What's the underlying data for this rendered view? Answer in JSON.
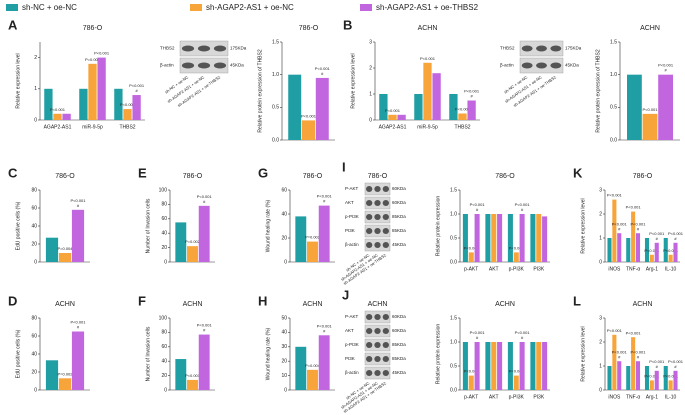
{
  "chart_data": [
    {
      "type": "bar",
      "panel": "A",
      "title": "786-O",
      "ylabel": "Relative expression level",
      "categories": [
        "AGAP2-AS1",
        "miR-9-5p",
        "THBS2"
      ],
      "ylim": [
        0,
        2.5
      ],
      "yticks": [
        0,
        1,
        2
      ],
      "series": [
        {
          "name": "sh-NC + oe-NC",
          "color": "#1f9ea3",
          "values": [
            1.0,
            1.0,
            1.0
          ]
        },
        {
          "name": "sh-AGAP2-AS1 + oe-NC",
          "color": "#f7a43a",
          "values": [
            0.2,
            1.8,
            0.35
          ],
          "notes": [
            [
              "P<0.001"
            ],
            [
              "P=0.002"
            ],
            [
              "P<0.001"
            ]
          ]
        },
        {
          "name": "sh-AGAP2-AS1 + oe-THBS2",
          "color": "#c266e0",
          "values": [
            0.2,
            2.0,
            0.8
          ],
          "notes": [
            null,
            [
              "P<0.001"
            ],
            [
              "P<0.001",
              "#"
            ]
          ]
        }
      ]
    },
    {
      "type": "bar",
      "title": "786-O",
      "ylabel": "Relative protein expression of THBS2",
      "categories": [
        null
      ],
      "ylim": [
        0,
        1.5
      ],
      "yticks": [
        {
          "value": 0,
          "label": "0.0"
        },
        {
          "value": 0.5,
          "label": "0.5"
        },
        {
          "value": 1,
          "label": "1.0"
        },
        {
          "value": 1.5,
          "label": "1.5"
        }
      ],
      "series": [
        {
          "name": "sh-NC + oe-NC",
          "color": "#1f9ea3",
          "values": [
            1.0
          ]
        },
        {
          "name": "sh-AGAP2-AS1 + oe-NC",
          "color": "#f7a43a",
          "values": [
            0.3
          ],
          "notes": [
            [
              "P<0.001"
            ]
          ]
        },
        {
          "name": "sh-AGAP2-AS1 + oe-THBS2",
          "color": "#c266e0",
          "values": [
            0.95
          ],
          "notes": [
            [
              "P<0.001",
              "#"
            ]
          ]
        }
      ]
    },
    {
      "type": "bar",
      "panel": "B",
      "title": "ACHN",
      "ylabel": "Relative expression level",
      "categories": [
        "AGAP2-AS1",
        "miR-9-5p",
        "THBS2"
      ],
      "ylim": [
        0,
        3
      ],
      "yticks": [
        0,
        1,
        2,
        3
      ],
      "series": [
        {
          "name": "sh-NC + oe-NC",
          "color": "#1f9ea3",
          "values": [
            1.0,
            1.0,
            1.0
          ]
        },
        {
          "name": "sh-AGAP2-AS1 + oe-NC",
          "color": "#f7a43a",
          "values": [
            0.2,
            2.2,
            0.25
          ],
          "notes": [
            [
              "P<0.001"
            ],
            [
              "P<0.001"
            ],
            [
              "P<0.001"
            ]
          ]
        },
        {
          "name": "sh-AGAP2-AS1 + oe-THBS2",
          "color": "#c266e0",
          "values": [
            0.2,
            1.8,
            0.75
          ],
          "notes": [
            null,
            null,
            [
              "P<0.001",
              "#"
            ]
          ]
        }
      ]
    },
    {
      "type": "bar",
      "title": "ACHN",
      "ylabel": "Relative protein expression of THBS2",
      "categories": [
        null
      ],
      "ylim": [
        0,
        1.5
      ],
      "yticks": [
        {
          "value": 0,
          "label": "0.0"
        },
        {
          "value": 0.5,
          "label": "0.5"
        },
        {
          "value": 1,
          "label": "1.0"
        },
        {
          "value": 1.5,
          "label": "1.5"
        }
      ],
      "series": [
        {
          "name": "sh-NC + oe-NC",
          "color": "#1f9ea3",
          "values": [
            1.0
          ]
        },
        {
          "name": "sh-AGAP2-AS1 + oe-NC",
          "color": "#f7a43a",
          "values": [
            0.4
          ],
          "notes": [
            [
              "P<0.001"
            ]
          ]
        },
        {
          "name": "sh-AGAP2-AS1 + oe-THBS2",
          "color": "#c266e0",
          "values": [
            1.0
          ],
          "notes": [
            [
              "P<0.001",
              "#"
            ]
          ]
        }
      ]
    },
    {
      "type": "bar",
      "panel": "C",
      "title": "786-O",
      "ylabel": "EdU positive cells (%)",
      "categories": [
        null
      ],
      "ylim": [
        0,
        80
      ],
      "yticks": [
        0,
        20,
        40,
        60,
        80
      ],
      "series": [
        {
          "name": "sh-NC + oe-NC",
          "color": "#1f9ea3",
          "values": [
            27
          ]
        },
        {
          "name": "sh-AGAP2-AS1 + oe-NC",
          "color": "#f7a43a",
          "values": [
            10
          ],
          "notes": [
            [
              "P=0.004"
            ]
          ]
        },
        {
          "name": "sh-AGAP2-AS1 + oe-THBS2",
          "color": "#c266e0",
          "values": [
            58
          ],
          "notes": [
            [
              "P<0.001",
              "#"
            ]
          ]
        }
      ]
    },
    {
      "type": "bar",
      "panel": "E",
      "title": "786-O",
      "ylabel": "Number of Invasion cells",
      "categories": [
        null
      ],
      "ylim": [
        0,
        100
      ],
      "yticks": [
        0,
        20,
        40,
        60,
        80,
        100
      ],
      "series": [
        {
          "name": "sh-NC + oe-NC",
          "color": "#1f9ea3",
          "values": [
            55
          ]
        },
        {
          "name": "sh-AGAP2-AS1 + oe-NC",
          "color": "#f7a43a",
          "values": [
            22
          ],
          "notes": [
            [
              "P=0.002"
            ]
          ]
        },
        {
          "name": "sh-AGAP2-AS1 + oe-THBS2",
          "color": "#c266e0",
          "values": [
            78
          ],
          "notes": [
            [
              "P<0.001",
              "#"
            ]
          ]
        }
      ]
    },
    {
      "type": "bar",
      "panel": "G",
      "title": "786-O",
      "ylabel": "Wound healing rate (%)",
      "categories": [
        null
      ],
      "ylim": [
        0,
        60
      ],
      "yticks": [
        0,
        20,
        40,
        60
      ],
      "series": [
        {
          "name": "sh-NC + oe-NC",
          "color": "#1f9ea3",
          "values": [
            38
          ]
        },
        {
          "name": "sh-AGAP2-AS1 + oe-NC",
          "color": "#f7a43a",
          "values": [
            17
          ],
          "notes": [
            [
              "P=0.002"
            ]
          ]
        },
        {
          "name": "sh-AGAP2-AS1 + oe-THBS2",
          "color": "#c266e0",
          "values": [
            47
          ],
          "notes": [
            [
              "P<0.001",
              "#"
            ]
          ]
        }
      ]
    },
    {
      "type": "bar",
      "title": "786-O",
      "ylabel": "Relative protein expression",
      "categories": [
        "p-AKT",
        "AKT",
        "p-PI3K",
        "PI3K"
      ],
      "ylim": [
        0,
        1.5
      ],
      "yticks": [
        {
          "value": 0,
          "label": "0.0"
        },
        {
          "value": 0.5,
          "label": "0.5"
        },
        {
          "value": 1,
          "label": "1.0"
        },
        {
          "value": 1.5,
          "label": "1.5"
        }
      ],
      "series": [
        {
          "name": "sh-NC + oe-NC",
          "color": "#1f9ea3",
          "values": [
            1.0,
            1.0,
            1.0,
            1.0
          ]
        },
        {
          "name": "sh-AGAP2-AS1 + oe-NC",
          "color": "#f7a43a",
          "values": [
            0.2,
            1.0,
            0.2,
            1.0
          ],
          "notes": [
            [
              "P<0.001"
            ],
            null,
            [
              "P<0.001"
            ],
            null
          ]
        },
        {
          "name": "sh-AGAP2-AS1 + oe-THBS2",
          "color": "#c266e0",
          "values": [
            1.0,
            1.0,
            1.0,
            0.95
          ],
          "notes": [
            [
              "P<0.001",
              "#"
            ],
            null,
            [
              "P<0.001",
              "#"
            ],
            null
          ]
        }
      ]
    },
    {
      "type": "bar",
      "panel": "K",
      "title": "786-O",
      "ylabel": "Relative expression level",
      "categories": [
        "iNOS",
        "TNF-α",
        "Arg-1",
        "IL-10"
      ],
      "ylim": [
        0,
        3
      ],
      "yticks": [
        0,
        1,
        2,
        3
      ],
      "series": [
        {
          "name": "sh-NC + oe-NC",
          "color": "#1f9ea3",
          "values": [
            1.0,
            1.0,
            1.0,
            1.0
          ]
        },
        {
          "name": "sh-AGAP2-AS1 + oe-NC",
          "color": "#f7a43a",
          "values": [
            2.6,
            2.1,
            0.3,
            0.3
          ],
          "notes": [
            [
              "P<0.001"
            ],
            [
              "P<0.001"
            ],
            [
              "P<0.001"
            ],
            [
              "P<0.001"
            ]
          ]
        },
        {
          "name": "sh-AGAP2-AS1 + oe-THBS2",
          "color": "#c266e0",
          "values": [
            1.2,
            1.2,
            0.8,
            0.8
          ],
          "notes": [
            [
              "P<0.001",
              "#"
            ],
            [
              "P<0.001",
              "#"
            ],
            [
              "P<0.001",
              "#"
            ],
            [
              "P<0.001",
              "#"
            ]
          ]
        }
      ]
    },
    {
      "type": "bar",
      "panel": "D",
      "title": "ACHN",
      "ylabel": "EdU positive cells (%)",
      "categories": [
        null
      ],
      "ylim": [
        0,
        80
      ],
      "yticks": [
        0,
        20,
        40,
        60,
        80
      ],
      "series": [
        {
          "name": "sh-NC + oe-NC",
          "color": "#1f9ea3",
          "values": [
            33
          ]
        },
        {
          "name": "sh-AGAP2-AS1 + oe-NC",
          "color": "#f7a43a",
          "values": [
            13
          ],
          "notes": [
            [
              "P=0.002"
            ]
          ]
        },
        {
          "name": "sh-AGAP2-AS1 + oe-THBS2",
          "color": "#c266e0",
          "values": [
            65
          ],
          "notes": [
            [
              "P<0.001",
              "#"
            ]
          ]
        }
      ]
    },
    {
      "type": "bar",
      "panel": "F",
      "title": "ACHN",
      "ylabel": "Number of Invasion cells",
      "categories": [
        null
      ],
      "ylim": [
        0,
        100
      ],
      "yticks": [
        0,
        20,
        40,
        60,
        80,
        100
      ],
      "series": [
        {
          "name": "sh-NC + oe-NC",
          "color": "#1f9ea3",
          "values": [
            43
          ]
        },
        {
          "name": "sh-AGAP2-AS1 + oe-NC",
          "color": "#f7a43a",
          "values": [
            14
          ],
          "notes": [
            [
              "P<0.001"
            ]
          ]
        },
        {
          "name": "sh-AGAP2-AS1 + oe-THBS2",
          "color": "#c266e0",
          "values": [
            77
          ],
          "notes": [
            [
              "P<0.001",
              "#"
            ]
          ]
        }
      ]
    },
    {
      "type": "bar",
      "panel": "H",
      "title": "ACHN",
      "ylabel": "Wound healing rate (%)",
      "categories": [
        null
      ],
      "ylim": [
        0,
        50
      ],
      "yticks": [
        0,
        10,
        20,
        30,
        40,
        50
      ],
      "series": [
        {
          "name": "sh-NC + oe-NC",
          "color": "#1f9ea3",
          "values": [
            30
          ]
        },
        {
          "name": "sh-AGAP2-AS1 + oe-NC",
          "color": "#f7a43a",
          "values": [
            14
          ],
          "notes": [
            [
              "P=0.004"
            ]
          ]
        },
        {
          "name": "sh-AGAP2-AS1 + oe-THBS2",
          "color": "#c266e0",
          "values": [
            38
          ],
          "notes": [
            [
              "P<0.001",
              "#"
            ]
          ]
        }
      ]
    },
    {
      "type": "bar",
      "title": "ACHN",
      "ylabel": "Relative protein expression",
      "categories": [
        "p-AKT",
        "AKT",
        "p-PI3K",
        "PI3K"
      ],
      "ylim": [
        0,
        1.5
      ],
      "yticks": [
        {
          "value": 0,
          "label": "0.0"
        },
        {
          "value": 0.5,
          "label": "0.5"
        },
        {
          "value": 1,
          "label": "1.0"
        },
        {
          "value": 1.5,
          "label": "1.5"
        }
      ],
      "series": [
        {
          "name": "sh-NC + oe-NC",
          "color": "#1f9ea3",
          "values": [
            1.0,
            1.0,
            1.0,
            1.0
          ]
        },
        {
          "name": "sh-AGAP2-AS1 + oe-NC",
          "color": "#f7a43a",
          "values": [
            0.3,
            1.0,
            0.3,
            1.0
          ],
          "notes": [
            [
              "P<0.001"
            ],
            null,
            [
              "P<0.001"
            ],
            null
          ]
        },
        {
          "name": "sh-AGAP2-AS1 + oe-THBS2",
          "color": "#c266e0",
          "values": [
            1.0,
            1.0,
            1.0,
            1.0
          ],
          "notes": [
            [
              "P<0.001",
              "#"
            ],
            null,
            [
              "P<0.001",
              "#"
            ],
            null
          ]
        }
      ]
    },
    {
      "type": "bar",
      "panel": "L",
      "title": "ACHN",
      "ylabel": "Relative expression level",
      "categories": [
        "iNOS",
        "TNF-α",
        "Arg-1",
        "IL-10"
      ],
      "ylim": [
        0,
        3
      ],
      "yticks": [
        0,
        1,
        2,
        3
      ],
      "series": [
        {
          "name": "sh-NC + oe-NC",
          "color": "#1f9ea3",
          "values": [
            1.0,
            1.0,
            1.0,
            1.0
          ]
        },
        {
          "name": "sh-AGAP2-AS1 + oe-NC",
          "color": "#f7a43a",
          "values": [
            2.3,
            2.2,
            0.4,
            0.4
          ],
          "notes": [
            [
              "P<0.001"
            ],
            [
              "P<0.001"
            ],
            [
              "P<0.001"
            ],
            [
              "P<0.001"
            ]
          ]
        },
        {
          "name": "sh-AGAP2-AS1 + oe-THBS2",
          "color": "#c266e0",
          "values": [
            1.2,
            1.2,
            0.8,
            0.8
          ],
          "notes": [
            [
              "P<0.001",
              "#"
            ],
            [
              "P<0.001",
              "#"
            ],
            [
              "P<0.001",
              "#"
            ],
            [
              "P<0.001",
              "#"
            ]
          ]
        }
      ]
    }
  ],
  "blots": [
    {
      "rows": [
        {
          "name": "THBS2",
          "kda": "175KDa"
        },
        {
          "name": "β-actin",
          "kda": "45KDa"
        }
      ],
      "lanes": [
        "sh-NC + oe-NC",
        "sh-AGAP2-AS1 + oe-NC",
        "sh-AGAP2-AS1 + oe-THBS2"
      ]
    },
    {
      "rows": [
        {
          "name": "THBS2",
          "kda": "175KDa"
        },
        {
          "name": "β-actin",
          "kda": "45KDa"
        }
      ],
      "lanes": [
        "sh-NC + oe-NC",
        "sh-AGAP2-AS1 + oe-NC",
        "sh-AGAP2-AS1 + oe-THBS2"
      ]
    },
    {
      "panel": "I",
      "title": "786-O",
      "rows": [
        {
          "name": "P-AKT",
          "kda": "60KDa"
        },
        {
          "name": "AKT",
          "kda": "60KDa"
        },
        {
          "name": "p-PI3K",
          "kda": "85KDa"
        },
        {
          "name": "PI3K",
          "kda": "85KDa"
        },
        {
          "name": "β-actin",
          "kda": "45KDa"
        }
      ],
      "lanes": [
        "sh-NC + oe-NC",
        "sh-AGAP2-AS1 + oe-NC",
        "sh-AGAP2-AS1 + oe-THBS2"
      ]
    },
    {
      "panel": "J",
      "title": "ACHN",
      "rows": [
        {
          "name": "P-AKT",
          "kda": "60KDa"
        },
        {
          "name": "AKT",
          "kda": "60KDa"
        },
        {
          "name": "p-PI3K",
          "kda": "85KDa"
        },
        {
          "name": "PI3K",
          "kda": "85KDa"
        },
        {
          "name": "β-actin",
          "kda": "45KDa"
        }
      ],
      "lanes": [
        "sh-NC + oe-NC",
        "sh-AGAP2-AS1 + oe-NC",
        "sh-AGAP2-AS1 + oe-THBS2"
      ]
    }
  ]
}
